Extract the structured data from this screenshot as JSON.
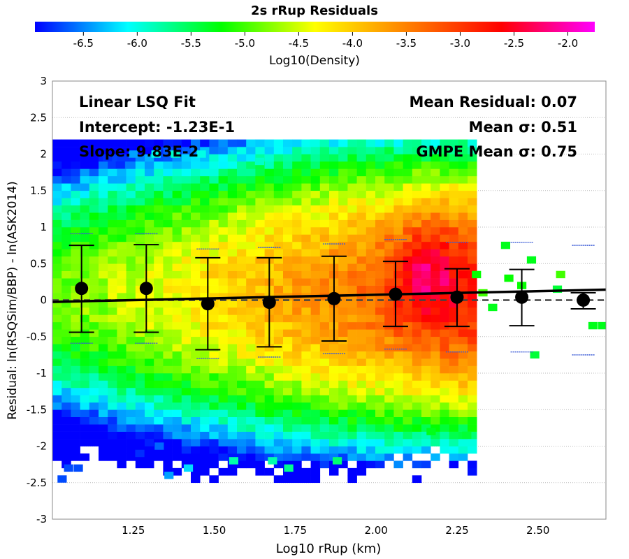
{
  "chart_data": {
    "type": "heatmap",
    "title": "2s rRup Residuals",
    "xlabel": "Log10 rRup (km)",
    "ylabel": "Residual: ln(RSQSim/BBP) - ln(ASK2014)",
    "xlim": [
      1.0,
      2.71
    ],
    "ylim": [
      -3,
      3
    ],
    "xticks": [
      "1.25",
      "1.50",
      "1.75",
      "2.00",
      "2.25",
      "2.50"
    ],
    "yticks": [
      "3",
      "2.5",
      "2",
      "1.5",
      "1",
      "0.5",
      "0",
      "-0.5",
      "-1",
      "-1.5",
      "-2",
      "-2.5",
      "-3"
    ],
    "grid": true,
    "colorbar": {
      "label": "Log10(Density)",
      "range": [
        -6.95,
        -1.75
      ],
      "ticks": [
        "-6.5",
        "-6.0",
        "-5.5",
        "-5.0",
        "-4.5",
        "-4.0",
        "-3.5",
        "-3.0",
        "-2.5",
        "-2.0"
      ]
    },
    "annotations_left": [
      "Linear LSQ Fit",
      "Intercept: -1.23E-1",
      "Slope: 9.83E-2"
    ],
    "annotations_right": [
      "Mean Residual: 0.07",
      "Mean σ: 0.51",
      "GMPE Mean σ: 0.75"
    ],
    "fit_line": {
      "intercept": -0.123,
      "slope": 0.0983
    },
    "bins": [
      {
        "x": 1.09,
        "mean": 0.16,
        "lower": -0.44,
        "upper": 0.75,
        "gmpe_upper": 0.91,
        "gmpe_lower": -0.59
      },
      {
        "x": 1.29,
        "mean": 0.16,
        "lower": -0.44,
        "upper": 0.76,
        "gmpe_upper": 0.91,
        "gmpe_lower": -0.59
      },
      {
        "x": 1.48,
        "mean": -0.05,
        "lower": -0.68,
        "upper": 0.58,
        "gmpe_upper": 0.7,
        "gmpe_lower": -0.8
      },
      {
        "x": 1.67,
        "mean": -0.03,
        "lower": -0.64,
        "upper": 0.58,
        "gmpe_upper": 0.72,
        "gmpe_lower": -0.78
      },
      {
        "x": 1.87,
        "mean": 0.02,
        "lower": -0.56,
        "upper": 0.6,
        "gmpe_upper": 0.77,
        "gmpe_lower": -0.73
      },
      {
        "x": 2.06,
        "mean": 0.08,
        "lower": -0.36,
        "upper": 0.53,
        "gmpe_upper": 0.83,
        "gmpe_lower": -0.67
      },
      {
        "x": 2.25,
        "mean": 0.04,
        "lower": -0.36,
        "upper": 0.43,
        "gmpe_upper": 0.79,
        "gmpe_lower": -0.71
      },
      {
        "x": 2.45,
        "mean": 0.04,
        "lower": -0.35,
        "upper": 0.42,
        "gmpe_upper": 0.79,
        "gmpe_lower": -0.71
      },
      {
        "x": 2.64,
        "mean": 0.0,
        "lower": -0.12,
        "upper": 0.1,
        "gmpe_upper": 0.75,
        "gmpe_lower": -0.75
      }
    ],
    "heatmap_cell": {
      "dx": 0.0285,
      "dy": 0.1
    },
    "heatmap_main": {
      "x_range": [
        1.0,
        2.3
      ],
      "y_range": [
        -2.5,
        2.2
      ],
      "peak_x": 2.16,
      "peak_y": 0.35,
      "peak_value": -2.0
    },
    "heatmap_sparse": [
      {
        "x": 1.03,
        "y": -2.45,
        "value": -6.7
      },
      {
        "x": 1.05,
        "y": -2.3,
        "value": -6.7
      },
      {
        "x": 1.08,
        "y": -2.3,
        "value": -6.7
      },
      {
        "x": 1.17,
        "y": 1.95,
        "value": -6.8
      },
      {
        "x": 1.21,
        "y": 1.85,
        "value": -6.8
      },
      {
        "x": 1.25,
        "y": 2.0,
        "value": -6.4
      },
      {
        "x": 1.32,
        "y": 2.0,
        "value": -6.0
      },
      {
        "x": 1.38,
        "y": 2.0,
        "value": -5.9
      },
      {
        "x": 1.46,
        "y": 2.0,
        "value": -6.0
      },
      {
        "x": 1.64,
        "y": 1.9,
        "value": -5.9
      },
      {
        "x": 1.81,
        "y": 2.15,
        "value": -6.0
      },
      {
        "x": 1.27,
        "y": -2.1,
        "value": -6.8
      },
      {
        "x": 1.33,
        "y": -2.0,
        "value": -6.6
      },
      {
        "x": 1.36,
        "y": -2.4,
        "value": -6.4
      },
      {
        "x": 1.42,
        "y": -2.3,
        "value": -6.2
      },
      {
        "x": 1.56,
        "y": -2.2,
        "value": -5.8
      },
      {
        "x": 1.68,
        "y": -2.2,
        "value": -5.8
      },
      {
        "x": 1.73,
        "y": -2.3,
        "value": -5.7
      },
      {
        "x": 1.88,
        "y": -2.2,
        "value": -5.6
      },
      {
        "x": 2.17,
        "y": -1.8,
        "value": -5.3
      },
      {
        "x": 2.28,
        "y": -1.85,
        "value": -5.4
      },
      {
        "x": 2.31,
        "y": 0.35,
        "value": -5.2
      },
      {
        "x": 2.33,
        "y": 0.1,
        "value": -5.0
      },
      {
        "x": 2.36,
        "y": -0.1,
        "value": -5.3
      },
      {
        "x": 2.4,
        "y": 0.75,
        "value": -5.3
      },
      {
        "x": 2.41,
        "y": 0.3,
        "value": -5.2
      },
      {
        "x": 2.45,
        "y": 0.2,
        "value": -5.2
      },
      {
        "x": 2.48,
        "y": 0.55,
        "value": -5.3
      },
      {
        "x": 2.49,
        "y": -0.75,
        "value": -5.4
      },
      {
        "x": 2.57,
        "y": 0.35,
        "value": -5.0
      },
      {
        "x": 2.67,
        "y": -0.35,
        "value": -5.3
      },
      {
        "x": 2.7,
        "y": -0.35,
        "value": -5.3
      },
      {
        "x": 2.56,
        "y": 0.15,
        "value": -5.4
      }
    ]
  }
}
